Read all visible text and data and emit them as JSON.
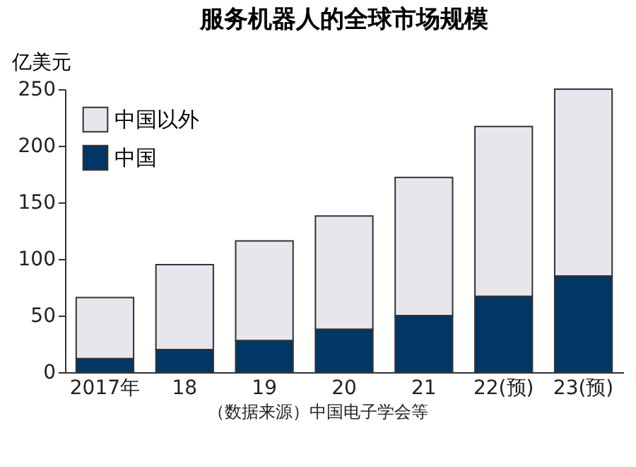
{
  "chart_data": {
    "type": "bar",
    "title": "服务机器人的全球市场规模",
    "ylabel": "亿美元",
    "categories": [
      "2017年",
      "18",
      "19",
      "20",
      "21",
      "22(预)",
      "23(预)"
    ],
    "series": [
      {
        "name": "中国",
        "color": "#003764",
        "values": [
          12,
          20,
          28,
          38,
          50,
          67,
          85
        ]
      },
      {
        "name": "中国以外",
        "color": "#e6e6ec",
        "values": [
          54,
          75,
          88,
          100,
          122,
          150,
          165
        ]
      }
    ],
    "stacked": true,
    "ylim": [
      0,
      250
    ],
    "yticks": [
      0,
      50,
      100,
      150,
      200,
      250
    ],
    "grid": false,
    "legend": "top left",
    "annotations": [
      "（数据来源）中国电子学会等"
    ]
  }
}
